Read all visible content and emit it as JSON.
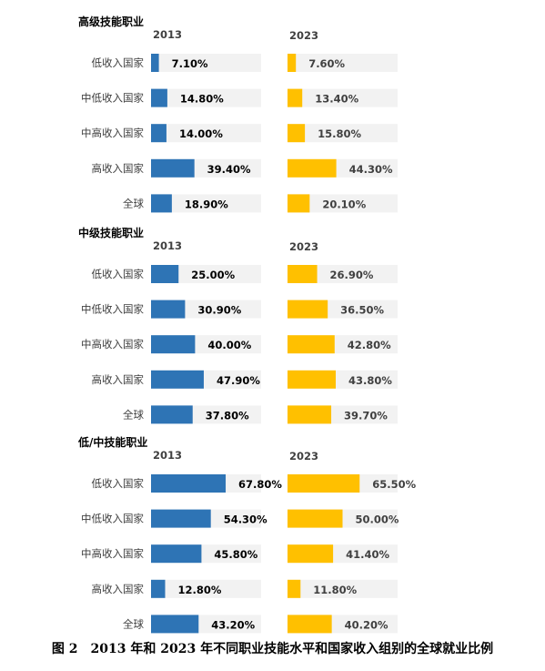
{
  "caption": "图 2　2013 年和 2023 年不同职业技能水平和国家收入组别的全球就业比例",
  "colors": {
    "y2013": "#2e74b5",
    "y2023": "#ffc000",
    "track": "#f2f2f2"
  },
  "chart_data": {
    "type": "bar",
    "orientation": "horizontal",
    "categories": [
      "低收入国家",
      "中低收入国家",
      "中高收入国家",
      "高收入国家",
      "全球"
    ],
    "value_unit": "%",
    "xlim": [
      0,
      100
    ],
    "panels": [
      {
        "title": "高级技能职业",
        "series": [
          {
            "name": "2013",
            "values": [
              7.1,
              14.8,
              14.0,
              39.4,
              18.9
            ],
            "labels": [
              "7.10%",
              "14.80%",
              "14.00%",
              "39.40%",
              "18.90%"
            ]
          },
          {
            "name": "2023",
            "values": [
              7.6,
              13.4,
              15.8,
              44.3,
              20.1
            ],
            "labels": [
              "7.60%",
              "13.40%",
              "15.80%",
              "44.30%",
              "20.10%"
            ]
          }
        ]
      },
      {
        "title": "中级技能职业",
        "series": [
          {
            "name": "2013",
            "values": [
              25.0,
              30.9,
              40.0,
              47.9,
              37.8
            ],
            "labels": [
              "25.00%",
              "30.90%",
              "40.00%",
              "47.90%",
              "37.80%"
            ]
          },
          {
            "name": "2023",
            "values": [
              26.9,
              36.5,
              42.8,
              43.8,
              39.7
            ],
            "labels": [
              "26.90%",
              "36.50%",
              "42.80%",
              "43.80%",
              "39.70%"
            ]
          }
        ]
      },
      {
        "title": "低/中技能职业",
        "series": [
          {
            "name": "2013",
            "values": [
              67.8,
              54.3,
              45.8,
              12.8,
              43.2
            ],
            "labels": [
              "67.80%",
              "54.30%",
              "45.80%",
              "12.80%",
              "43.20%"
            ]
          },
          {
            "name": "2023",
            "values": [
              65.5,
              50.0,
              41.4,
              11.8,
              40.2
            ],
            "labels": [
              "65.50%",
              "50.00%",
              "41.40%",
              "11.80%",
              "40.20%"
            ]
          }
        ]
      }
    ]
  }
}
